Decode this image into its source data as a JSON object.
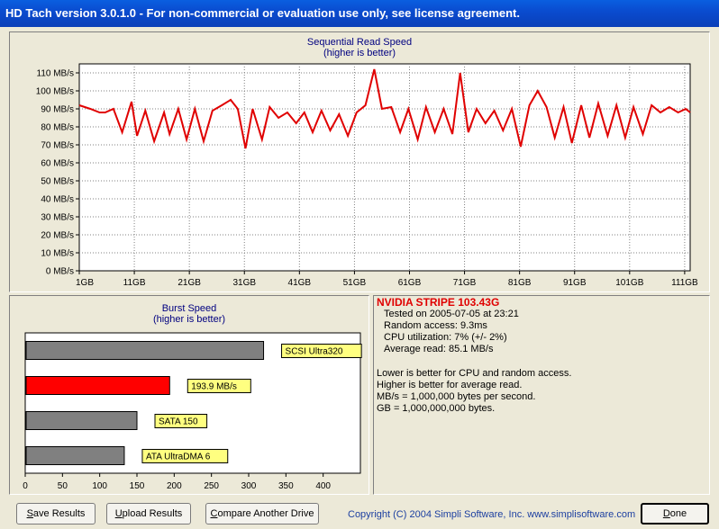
{
  "window": {
    "title": "HD Tach version 3.0.1.0  - For non-commercial or evaluation use only, see license agreement."
  },
  "chart_data": [
    {
      "type": "line",
      "title": "Sequential Read Speed",
      "subtitle": "(higher is better)",
      "yunit": "MB/s",
      "ylim": [
        0,
        115
      ],
      "yticks": [
        0,
        10,
        20,
        30,
        40,
        50,
        60,
        70,
        80,
        90,
        100,
        110
      ],
      "ytick_labels": [
        "0 MB/s",
        "10 MB/s",
        "20 MB/s",
        "30 MB/s",
        "40 MB/s",
        "50 MB/s",
        "60 MB/s",
        "70 MB/s",
        "80 MB/s",
        "90 MB/s",
        "100 MB/s",
        "110 MB/s"
      ],
      "xlim": [
        1,
        112
      ],
      "xticks": [
        1,
        11,
        21,
        31,
        41,
        51,
        61,
        71,
        81,
        91,
        101,
        111
      ],
      "xtick_labels": [
        "1GB",
        "11GB",
        "21GB",
        "31GB",
        "41GB",
        "51GB",
        "61GB",
        "71GB",
        "81GB",
        "91GB",
        "101GB",
        "111GB"
      ],
      "grid": true,
      "color": "#e00000",
      "x": [
        1,
        3,
        4.7,
        5.7,
        7.2,
        8.8,
        10.5,
        11.5,
        13,
        14.6,
        16.4,
        17.4,
        19,
        20.5,
        22,
        23.6,
        25.2,
        26.9,
        28.5,
        29.8,
        31.2,
        32.5,
        34.2,
        35.6,
        37.2,
        38.8,
        40.4,
        41.9,
        43.4,
        45,
        46.6,
        48.2,
        49.8,
        51.4,
        53,
        54.6,
        56,
        57.7,
        59.3,
        60.8,
        62.5,
        64,
        65.6,
        67.2,
        68.8,
        70.2,
        71.7,
        73.2,
        74.8,
        76.4,
        78,
        79.6,
        81.2,
        82.8,
        84.3,
        85.9,
        87.4,
        89,
        90.5,
        92.2,
        93.7,
        95.3,
        97,
        98.6,
        100.2,
        101.7,
        103.4,
        105,
        106.6,
        108.2,
        109.8,
        111.2,
        112
      ],
      "y": [
        92,
        90,
        88,
        88,
        90,
        77,
        94,
        75,
        89,
        72,
        88,
        76,
        90,
        73,
        90,
        72,
        89,
        92,
        95,
        90,
        68,
        90,
        73,
        91,
        85,
        88,
        82,
        88,
        77,
        89,
        78,
        87,
        75,
        88,
        92,
        112,
        90,
        91,
        77,
        90,
        73,
        91,
        77,
        90,
        76,
        110,
        77,
        90,
        82,
        89,
        78,
        90,
        69,
        92,
        100,
        91,
        74,
        91,
        71,
        92,
        74,
        93,
        75,
        92,
        74,
        91,
        76,
        92,
        88,
        91,
        88,
        90,
        88
      ]
    },
    {
      "type": "bar",
      "orientation": "horizontal",
      "title": "Burst Speed",
      "subtitle": "(higher is better)",
      "xlim": [
        0,
        450
      ],
      "xticks": [
        0,
        50,
        100,
        150,
        200,
        250,
        300,
        350,
        400
      ],
      "xtick_labels": [
        "0",
        "50",
        "100",
        "150",
        "200",
        "250",
        "300",
        "350",
        "400"
      ],
      "categories": [
        "SCSI Ultra320",
        "193.9 MB/s",
        "SATA 150",
        "ATA UltraDMA 6"
      ],
      "values": [
        320,
        193.9,
        150,
        133
      ],
      "colors": [
        "#808080",
        "#ff0000",
        "#808080",
        "#808080"
      ],
      "label_bg": "#ffff80"
    }
  ],
  "info": {
    "drive_name": "NVIDIA STRIPE 103.43G",
    "tested": "Tested on 2005-07-05 at 23:21",
    "random_access": "Random access: 9.3ms",
    "cpu": "CPU utilization: 7% (+/- 2%)",
    "average_read": "Average read: 85.1 MB/s",
    "notes": [
      "Lower is better for CPU and random access.",
      "Higher is better for average read.",
      "MB/s = 1,000,000 bytes per second.",
      "GB = 1,000,000,000 bytes."
    ]
  },
  "buttons": {
    "save": {
      "u": "S",
      "rest": "ave Results"
    },
    "upload": {
      "u": "U",
      "rest": "pload Results"
    },
    "compare": {
      "u": "C",
      "rest": "ompare Another Drive"
    },
    "done": {
      "u": "D",
      "rest": "one"
    }
  },
  "copyright": "Copyright (C) 2004 Simpli Software, Inc. www.simplisoftware.com"
}
